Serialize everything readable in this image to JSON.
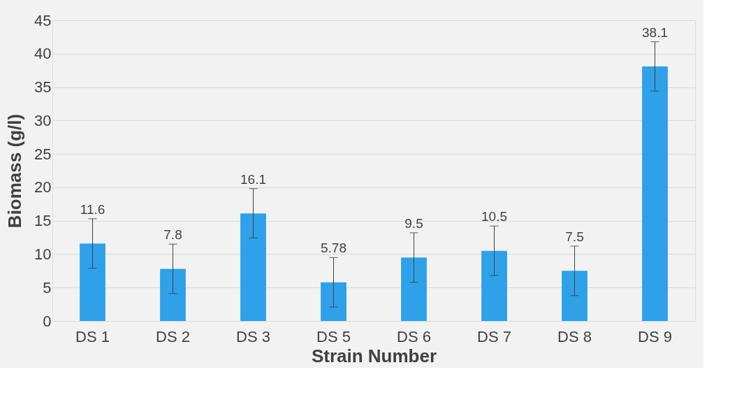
{
  "chart_data": {
    "type": "bar",
    "xlabel": "Strain Number",
    "ylabel": "Biomass (g/l)",
    "categories": [
      "DS 1",
      "DS 2",
      "DS 3",
      "DS 5",
      "DS 6",
      "DS 7",
      "DS 8",
      "DS 9"
    ],
    "values": [
      11.6,
      7.8,
      16.1,
      5.78,
      9.5,
      10.5,
      7.5,
      38.1
    ],
    "errors": [
      3.7,
      3.7,
      3.7,
      3.7,
      3.7,
      3.7,
      3.7,
      3.7
    ],
    "color": "#2ea1e8",
    "ylim": [
      0,
      45
    ],
    "yticks": [
      0,
      5,
      10,
      15,
      20,
      25,
      30,
      35,
      40,
      45
    ],
    "grid": "y",
    "data_labels": true
  }
}
